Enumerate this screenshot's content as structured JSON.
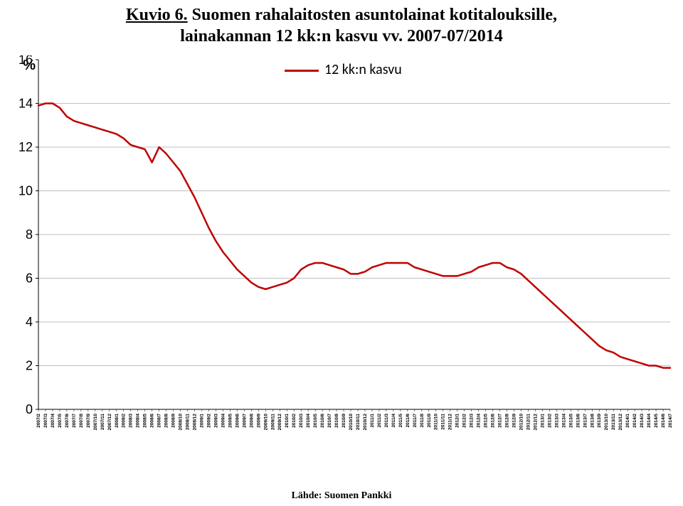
{
  "title": {
    "prefix": "Kuvio 6.",
    "rest_line1": " Suomen rahalaitosten asuntolainat kotitalouksille,",
    "line2": "lainakannan 12 kk:n kasvu vv. 2007-07/2014"
  },
  "legend_label": "12 kk:n kasvu",
  "y_axis_label": "%",
  "footer": "Lähde: Suomen Pankki",
  "chart": {
    "type": "line",
    "line_color": "#c00000",
    "line_width": 2.5,
    "axis_color": "#000000",
    "axis_width": 1,
    "grid_color": "#bfbfbf",
    "grid_width": 1,
    "background_color": "#ffffff",
    "ylim": [
      0,
      16
    ],
    "ytick_step": 2,
    "footer_fontsize": 14,
    "title_fontsize": 24,
    "categories": [
      "2007/2",
      "2007/3",
      "2007/4",
      "2007/5",
      "2007/6",
      "2007/7",
      "2007/8",
      "2007/9",
      "2007/10",
      "2007/11",
      "2007/12",
      "2008/1",
      "2008/2",
      "2008/3",
      "2008/4",
      "2008/5",
      "2008/6",
      "2008/7",
      "2008/8",
      "2008/9",
      "2008/10",
      "2008/11",
      "2008/12",
      "2009/1",
      "2009/2",
      "2009/3",
      "2009/4",
      "2009/5",
      "2009/6",
      "2009/7",
      "2009/8",
      "2009/9",
      "2009/10",
      "2009/11",
      "2009/12",
      "2010/1",
      "2010/2",
      "2010/3",
      "2010/4",
      "2010/5",
      "2010/6",
      "2010/7",
      "2010/8",
      "2010/9",
      "2010/10",
      "2010/11",
      "2010/12",
      "2011/1",
      "2011/2",
      "2011/3",
      "2011/4",
      "2011/5",
      "2011/6",
      "2011/7",
      "2011/8",
      "2011/9",
      "2011/10",
      "2011/11",
      "2011/12",
      "2012/1",
      "2012/2",
      "2012/3",
      "2012/4",
      "2012/5",
      "2012/6",
      "2012/7",
      "2012/8",
      "2012/9",
      "2012/10",
      "2012/11",
      "2012/12",
      "2013/1",
      "2013/2",
      "2013/3",
      "2013/4",
      "2013/5",
      "2013/6",
      "2013/7",
      "2013/8",
      "2013/9",
      "2013/10",
      "2013/11",
      "2013/12",
      "2014/1",
      "2014/2",
      "2014/3",
      "2014/4",
      "2014/5",
      "2014/6",
      "2014/7"
    ],
    "values": [
      13.9,
      14.0,
      14.0,
      13.8,
      13.4,
      13.2,
      13.1,
      13.0,
      12.9,
      12.8,
      12.7,
      12.6,
      12.4,
      12.1,
      12.0,
      11.9,
      11.3,
      12.0,
      11.7,
      11.3,
      10.9,
      10.3,
      9.7,
      9.0,
      8.3,
      7.7,
      7.2,
      6.8,
      6.4,
      6.1,
      5.8,
      5.6,
      5.5,
      5.6,
      5.7,
      5.8,
      6.0,
      6.4,
      6.6,
      6.7,
      6.7,
      6.6,
      6.5,
      6.4,
      6.2,
      6.2,
      6.3,
      6.5,
      6.6,
      6.7,
      6.7,
      6.7,
      6.7,
      6.5,
      6.4,
      6.3,
      6.2,
      6.1,
      6.1,
      6.1,
      6.2,
      6.3,
      6.5,
      6.6,
      6.7,
      6.7,
      6.5,
      6.4,
      6.2,
      5.9,
      5.6,
      5.3,
      5.0,
      4.7,
      4.4,
      4.1,
      3.8,
      3.5,
      3.2,
      2.9,
      2.7,
      2.6,
      2.4,
      2.3,
      2.2,
      2.1,
      2.0,
      2.0,
      1.9,
      1.9
    ]
  }
}
